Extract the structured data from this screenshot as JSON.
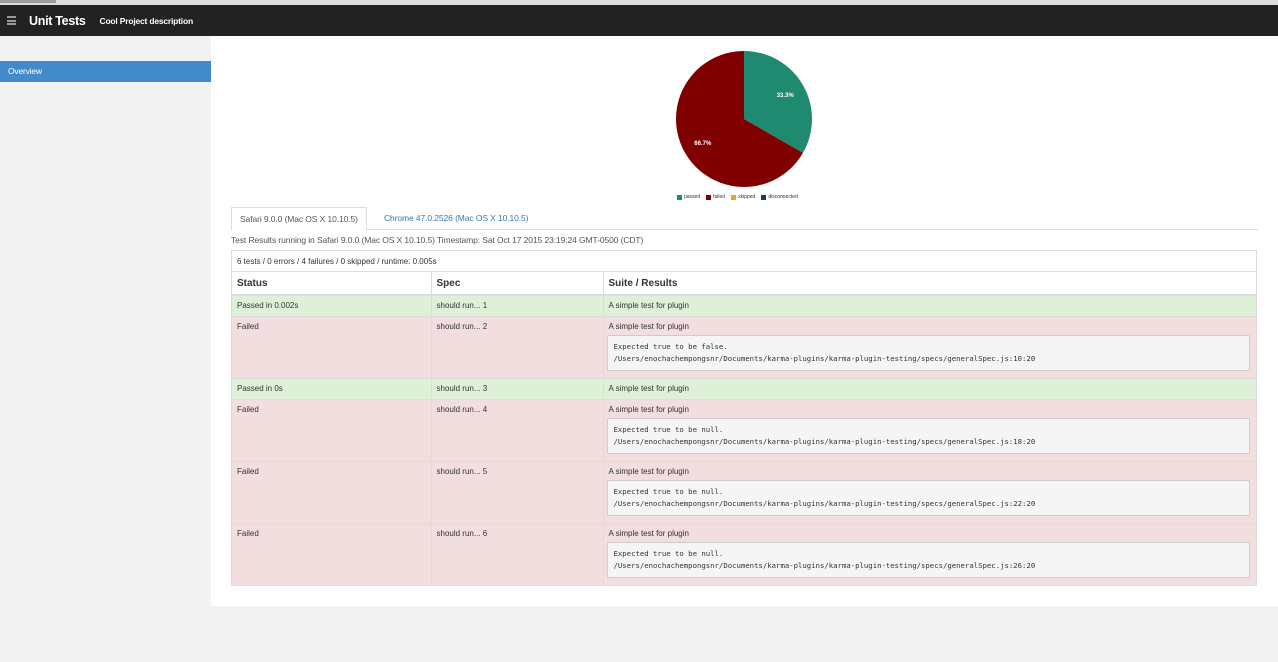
{
  "navbar": {
    "brand": "Unit Tests",
    "description": "Cool Project description",
    "menu_icon": "list-icon"
  },
  "sidebar": {
    "items": [
      {
        "label": "Overview",
        "active": true
      }
    ]
  },
  "chart_data": {
    "type": "pie",
    "slices": [
      {
        "name": "passed",
        "value": 33.3,
        "label": "33.3%",
        "color": "#1f8a6f"
      },
      {
        "name": "failed",
        "value": 66.7,
        "label": "66.7%",
        "color": "#800000"
      },
      {
        "name": "skipped",
        "value": 0,
        "label": "",
        "color": "#e0a52a"
      },
      {
        "name": "disconnected",
        "value": 0,
        "label": "",
        "color": "#1a3f66"
      }
    ],
    "legend_position": "bottom"
  },
  "tabs": [
    {
      "label": "Safari 9.0.0 (Mac OS X 10.10.5)",
      "active": true
    },
    {
      "label": "Chrome 47.0.2526 (Mac OS X 10.10.5)",
      "active": false
    }
  ],
  "timestamp_text": "Test Results running in Safari 9.0.0 (Mac OS X 10.10.5) Timestamp: Sat Oct 17 2015 23:19:24 GMT-0500 (CDT)",
  "summary": "6 tests / 0 errors / 4 failures / 0 skipped / runtime: 0.005s",
  "table": {
    "headers": [
      "Status",
      "Spec",
      "Suite / Results"
    ],
    "rows": [
      {
        "status": "Passed in 0.002s",
        "spec": "should run... 1",
        "suite": "A simple test for plugin",
        "passed": true,
        "error_line1": "",
        "error_line2": ""
      },
      {
        "status": "Failed",
        "spec": "should run... 2",
        "suite": "A simple test for plugin",
        "passed": false,
        "error_line1": "Expected true to be false.",
        "error_line2": "/Users/enochachempongsnr/Documents/karma-plugins/karma-plugin-testing/specs/generalSpec.js:10:20"
      },
      {
        "status": "Passed in 0s",
        "spec": "should run... 3",
        "suite": "A simple test for plugin",
        "passed": true,
        "error_line1": "",
        "error_line2": ""
      },
      {
        "status": "Failed",
        "spec": "should run... 4",
        "suite": "A simple test for plugin",
        "passed": false,
        "error_line1": "Expected true to be null.",
        "error_line2": "/Users/enochachempongsnr/Documents/karma-plugins/karma-plugin-testing/specs/generalSpec.js:18:20"
      },
      {
        "status": "Failed",
        "spec": "should run... 5",
        "suite": "A simple test for plugin",
        "passed": false,
        "error_line1": "Expected true to be null.",
        "error_line2": "/Users/enochachempongsnr/Documents/karma-plugins/karma-plugin-testing/specs/generalSpec.js:22:20"
      },
      {
        "status": "Failed",
        "spec": "should run... 6",
        "suite": "A simple test for plugin",
        "passed": false,
        "error_line1": "Expected true to be null.",
        "error_line2": "/Users/enochachempongsnr/Documents/karma-plugins/karma-plugin-testing/specs/generalSpec.js:26:20"
      }
    ]
  }
}
